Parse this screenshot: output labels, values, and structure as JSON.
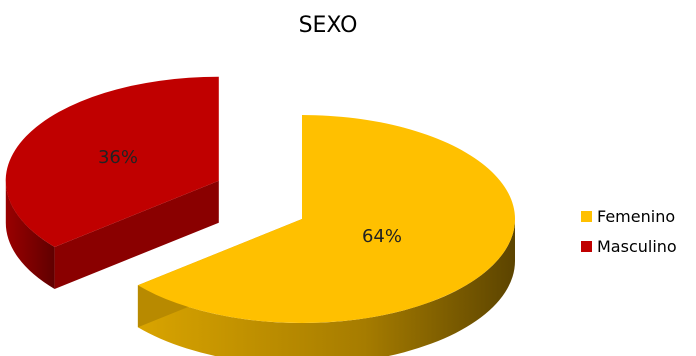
{
  "chart_data": {
    "type": "pie",
    "title": "SEXO",
    "slices": [
      {
        "label": "Femenino",
        "value": 64,
        "display": "64%",
        "color": "#FFC000",
        "side_color": "#A67C00",
        "exploded": false
      },
      {
        "label": "Masculino",
        "value": 36,
        "display": "36%",
        "color": "#C00000",
        "side_color": "#7A0000",
        "exploded": true
      }
    ],
    "legend_position": "right",
    "style": "3d-exploded"
  }
}
